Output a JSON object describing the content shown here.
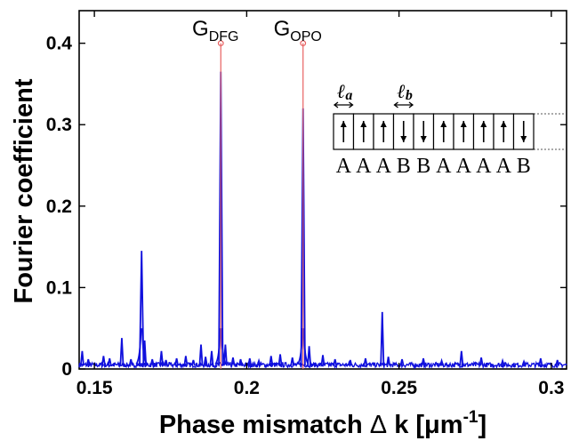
{
  "chart_data": {
    "type": "line",
    "xlabel_text": "Phase mismatch ",
    "xlabel_delta": "Δ",
    "xlabel_k": " k [",
    "xlabel_mu": "μ",
    "xlabel_unit": "m",
    "xlabel_exp": "-1",
    "xlabel_close": "]",
    "ylabel": "Fourier coefficient",
    "xlim": [
      0.145,
      0.305
    ],
    "ylim": [
      0,
      0.44
    ],
    "xticks": [
      0.15,
      0.2,
      0.25,
      0.3
    ],
    "xtick_labels": [
      "0.15",
      "0.2",
      "0.25",
      "0.3"
    ],
    "yticks": [
      0,
      0.1,
      0.2,
      0.3,
      0.4
    ],
    "ytick_labels": [
      "0",
      "0.1",
      "0.2",
      "0.3",
      "0.4"
    ],
    "grid": false,
    "colors": {
      "spectrum": "#1010dd",
      "peak_marker": "#e86060"
    },
    "series": [
      {
        "style": "spectrum",
        "peaks": [
          {
            "x": 0.146,
            "y": 0.022
          },
          {
            "x": 0.148,
            "y": 0.012
          },
          {
            "x": 0.153,
            "y": 0.016
          },
          {
            "x": 0.155,
            "y": 0.013
          },
          {
            "x": 0.159,
            "y": 0.038
          },
          {
            "x": 0.162,
            "y": 0.012
          },
          {
            "x": 0.1655,
            "y": 0.145
          },
          {
            "x": 0.1665,
            "y": 0.035
          },
          {
            "x": 0.169,
            "y": 0.012
          },
          {
            "x": 0.172,
            "y": 0.022
          },
          {
            "x": 0.1735,
            "y": 0.011
          },
          {
            "x": 0.177,
            "y": 0.013
          },
          {
            "x": 0.18,
            "y": 0.016
          },
          {
            "x": 0.1825,
            "y": 0.011
          },
          {
            "x": 0.185,
            "y": 0.03
          },
          {
            "x": 0.1865,
            "y": 0.015
          },
          {
            "x": 0.1885,
            "y": 0.022
          },
          {
            "x": 0.1915,
            "y": 0.365
          },
          {
            "x": 0.193,
            "y": 0.03
          },
          {
            "x": 0.1955,
            "y": 0.014
          },
          {
            "x": 0.198,
            "y": 0.012
          },
          {
            "x": 0.201,
            "y": 0.013
          },
          {
            "x": 0.204,
            "y": 0.01
          },
          {
            "x": 0.208,
            "y": 0.016
          },
          {
            "x": 0.211,
            "y": 0.018
          },
          {
            "x": 0.215,
            "y": 0.014
          },
          {
            "x": 0.2185,
            "y": 0.32
          },
          {
            "x": 0.2205,
            "y": 0.028
          },
          {
            "x": 0.225,
            "y": 0.017
          },
          {
            "x": 0.229,
            "y": 0.012
          },
          {
            "x": 0.234,
            "y": 0.011
          },
          {
            "x": 0.239,
            "y": 0.013
          },
          {
            "x": 0.2445,
            "y": 0.07
          },
          {
            "x": 0.2465,
            "y": 0.015
          },
          {
            "x": 0.251,
            "y": 0.012
          },
          {
            "x": 0.258,
            "y": 0.013
          },
          {
            "x": 0.264,
            "y": 0.01
          },
          {
            "x": 0.2705,
            "y": 0.022
          },
          {
            "x": 0.277,
            "y": 0.014
          },
          {
            "x": 0.284,
            "y": 0.01
          },
          {
            "x": 0.291,
            "y": 0.009
          },
          {
            "x": 0.2965,
            "y": 0.013
          },
          {
            "x": 0.302,
            "y": 0.011
          }
        ]
      },
      {
        "style": "peak_marker",
        "points": [
          {
            "x": 0.1915,
            "y": 0.4
          },
          {
            "x": 0.2185,
            "y": 0.4
          }
        ]
      }
    ],
    "annotations": [
      {
        "main": "G",
        "sub": "DFG",
        "x": 0.1915
      },
      {
        "main": "G",
        "sub": "OPO",
        "x": 0.2185
      }
    ],
    "inset": {
      "length_labels": [
        {
          "main": "ℓ",
          "sub": "a"
        },
        {
          "main": "ℓ",
          "sub": "b"
        }
      ],
      "domains": [
        "up",
        "up",
        "up",
        "down",
        "down",
        "up",
        "up",
        "up",
        "up",
        "down"
      ],
      "sequence": [
        "A",
        "A",
        "A",
        "B",
        "B",
        "A",
        "A",
        "A",
        "A",
        "B"
      ]
    }
  }
}
